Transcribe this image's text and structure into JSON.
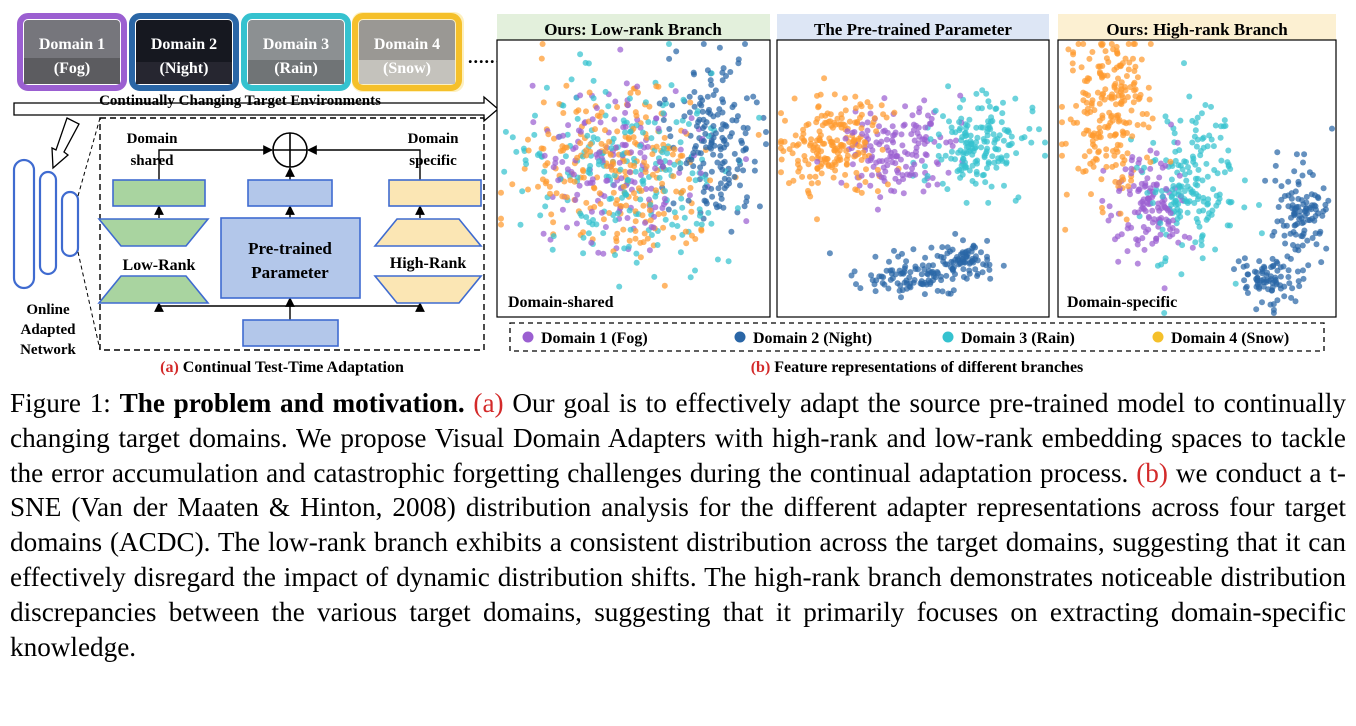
{
  "palette": {
    "fog": "#9b5fd1",
    "night": "#2a66a6",
    "rain": "#35c2cf",
    "snow": "#ff9a2e",
    "low_rank": "#a9d4a0",
    "pretrained": "#b3c7ea",
    "high_rank": "#fbe6b4",
    "caption_ref": "#d32a2a"
  },
  "panel_a": {
    "domains": [
      {
        "line1": "Domain 1",
        "line2": "(Fog)",
        "frame_color": "#9b5fd1"
      },
      {
        "line1": "Domain 2",
        "line2": "(Night)",
        "frame_color": "#2a66a6"
      },
      {
        "line1": "Domain 3",
        "line2": "(Rain)",
        "frame_color": "#35c2cf"
      },
      {
        "line1": "Domain 4",
        "line2": "(Snow)",
        "frame_color": "#f5c02a"
      }
    ],
    "ellipsis": "......",
    "env_label": "Continually Changing Target Environments",
    "network_label": [
      "Online",
      "Adapted",
      "Network"
    ],
    "domain_shared": [
      "Domain",
      "shared"
    ],
    "domain_specific": [
      "Domain",
      "specific"
    ],
    "low_rank": "Low-Rank",
    "pretrained": [
      "Pre-trained",
      "Parameter"
    ],
    "high_rank": "High-Rank",
    "plus_symbol": "+",
    "caption_letter": "(a)",
    "caption_text": " Continual Test-Time Adaptation"
  },
  "panel_b": {
    "plots": [
      {
        "title": "Ours: Low-rank Branch",
        "title_bg": "#e3f0dc",
        "annotation": "Domain-shared"
      },
      {
        "title": "The Pre-trained Parameter",
        "title_bg": "#dde6f5",
        "annotation": ""
      },
      {
        "title": "Ours: High-rank Branch",
        "title_bg": "#fcf0d2",
        "annotation": "Domain-specific"
      }
    ],
    "legend": [
      {
        "label": "Domain 1 (Fog)",
        "color": "#9b5fd1"
      },
      {
        "label": "Domain 2 (Night)",
        "color": "#2a66a6"
      },
      {
        "label": "Domain 3 (Rain)",
        "color": "#35c2cf"
      },
      {
        "label": "Domain 4 (Snow)",
        "color": "#f5c02a"
      }
    ],
    "caption_letter": "(b)",
    "caption_text": " Feature representations of different branches"
  },
  "caption": {
    "label": "Figure 1: ",
    "title": "The problem and motivation.",
    "ref_a": "(a)",
    "text_a": " Our goal is to effectively adapt the source pre-trained model to continually changing target domains.  We propose Visual Domain Adapters with high-rank and low-rank embedding spaces to tackle the error accumulation and catastrophic forgetting challenges during the continual adaptation process. ",
    "ref_b": "(b)",
    "text_b": " we conduct a t-SNE (Van der Maaten & Hinton, 2008) distribution analysis for the different adapter representations across four target domains (ACDC). The low-rank branch exhibits a consistent distribution across the target domains, suggesting that it can effectively disregard the impact of dynamic distribution shifts.  The high-rank branch demonstrates noticeable distribution discrepancies between the various target domains, suggesting that it primarily focuses on extracting domain-specific knowledge."
  }
}
